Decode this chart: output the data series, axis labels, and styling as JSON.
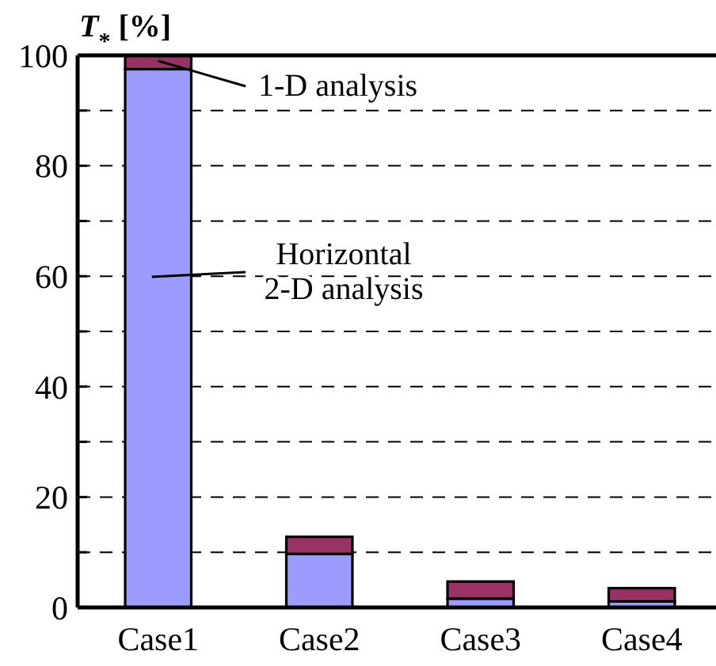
{
  "chart_data": {
    "type": "bar",
    "stacked": true,
    "ylabel": "T$_{*}$ [%]",
    "categories": [
      "Case1",
      "Case2",
      "Case3",
      "Case4"
    ],
    "series": [
      {
        "color": "#9c9cff",
        "values": [
          97.5,
          9.7,
          1.6,
          1.1
        ]
      },
      {
        "color": "#993366",
        "values": [
          2.5,
          3.1,
          3.1,
          2.4
        ]
      }
    ],
    "ylim": [
      0,
      100
    ],
    "yticks": [
      0,
      {
        "value": 10,
        "label": null
      },
      20,
      {
        "value": 30,
        "label": null
      },
      40,
      {
        "value": 50,
        "label": null
      },
      60,
      {
        "value": 70,
        "label": null
      },
      80,
      {
        "value": 90,
        "label": null
      },
      100
    ],
    "grid": "y",
    "annotations": [
      {
        "text": "1-D analysis",
        "x": "Case1",
        "y": 99
      },
      "Horizontal\n2-D analysis"
    ]
  }
}
